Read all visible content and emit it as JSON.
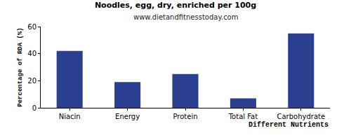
{
  "chart_data": {
    "type": "bar",
    "title": "Noodles, egg, dry, enriched per 100g",
    "subtitle": "www.dietandfitnesstoday.com",
    "xlabel": "Different Nutrients",
    "ylabel": "Percentage of RDA (%)",
    "categories": [
      "Niacin",
      "Energy",
      "Protein",
      "Total Fat",
      "Carbohydrate"
    ],
    "values": [
      42,
      19,
      25,
      7,
      55
    ],
    "color": "#2a3f8f",
    "ylim": [
      0,
      60
    ],
    "yticks": [
      0,
      20,
      40,
      60
    ],
    "grid": false
  }
}
